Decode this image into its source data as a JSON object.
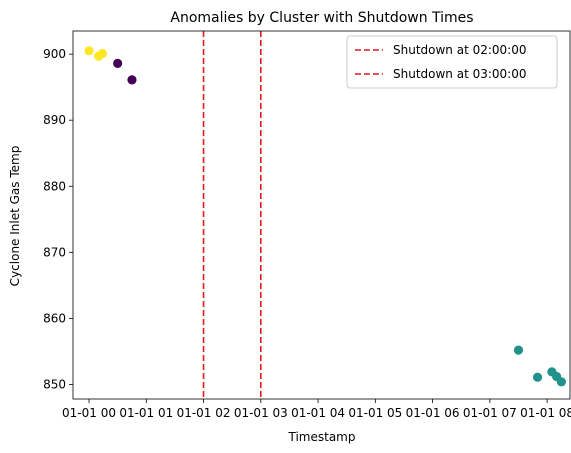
{
  "chart_data": {
    "type": "scatter",
    "title": "Anomalies by Cluster with Shutdown Times",
    "xlabel": "Timestamp",
    "ylabel": "Cyclone Inlet Gas Temp",
    "x_tick_labels": [
      "01-01 00",
      "01-01 01",
      "01-01 02",
      "01-01 03",
      "01-01 04",
      "01-01 05",
      "01-01 06",
      "01-01 07",
      "01-01 08"
    ],
    "y_ticks": [
      850,
      860,
      870,
      880,
      890,
      900
    ],
    "x_range_hours": [
      -0.28,
      8.4
    ],
    "y_range": [
      847.8,
      903.5
    ],
    "grid": false,
    "legend_position": "top-right",
    "series": [
      {
        "color": "#fde725",
        "points": [
          {
            "x": "01-01 00:00",
            "y": 900.5
          },
          {
            "x": "01-01 00:10",
            "y": 899.7
          },
          {
            "x": "01-01 00:14",
            "y": 900.1
          }
        ]
      },
      {
        "color": "#440154",
        "points": [
          {
            "x": "01-01 00:30",
            "y": 898.6
          },
          {
            "x": "01-01 00:45",
            "y": 896.1
          }
        ]
      },
      {
        "color": "#21918c",
        "points": [
          {
            "x": "01-01 07:30",
            "y": 855.2
          },
          {
            "x": "01-01 07:50",
            "y": 851.1
          },
          {
            "x": "01-01 08:05",
            "y": 851.9
          },
          {
            "x": "01-01 08:10",
            "y": 851.2
          },
          {
            "x": "01-01 08:15",
            "y": 850.4
          }
        ]
      }
    ],
    "vlines": [
      {
        "x": "01-01 02:00",
        "label": "Shutdown at 02:00:00",
        "color": "#e41a1c",
        "style": "dashed"
      },
      {
        "x": "01-01 03:00",
        "label": "Shutdown at 03:00:00",
        "color": "#e41a1c",
        "style": "dashed"
      }
    ]
  }
}
